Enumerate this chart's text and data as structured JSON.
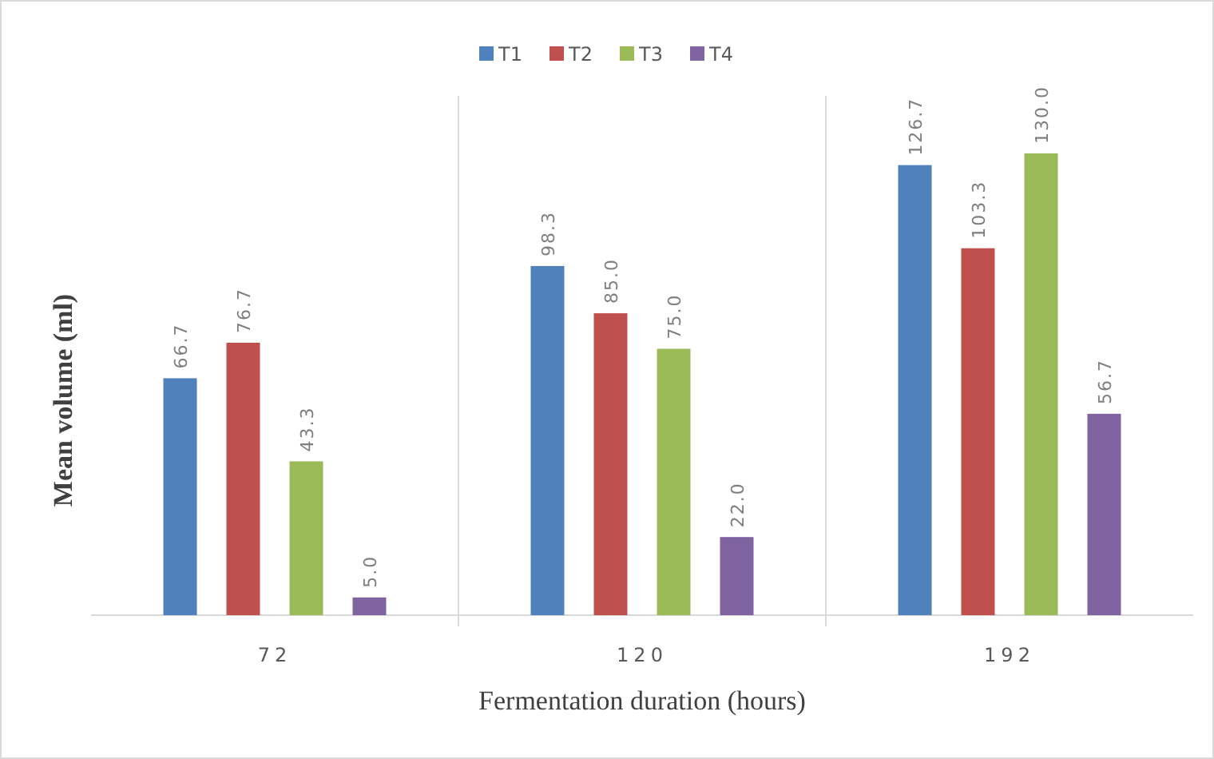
{
  "chart_data": {
    "type": "bar",
    "xlabel": "Fermentation duration (hours)",
    "ylabel": "Mean volume (ml)",
    "categories": [
      "72",
      "120",
      "192"
    ],
    "series": [
      {
        "name": "T1",
        "color": "#4f81bd",
        "values": [
          66.7,
          98.3,
          126.7
        ],
        "value_labels": [
          "66.7",
          "98.3",
          "126.7"
        ]
      },
      {
        "name": "T2",
        "color": "#c0504d",
        "values": [
          76.7,
          85,
          103.3
        ],
        "value_labels": [
          "76.7",
          "85.0",
          "103.3"
        ]
      },
      {
        "name": "T3",
        "color": "#9bbb59",
        "values": [
          43.3,
          75,
          130
        ],
        "value_labels": [
          "43.3",
          "75.0",
          "130.0"
        ]
      },
      {
        "name": "T4",
        "color": "#8064a2",
        "values": [
          5,
          22,
          56.7
        ],
        "value_labels": [
          "5.0",
          "22.0",
          "56.7"
        ]
      }
    ],
    "legend": "top"
  }
}
